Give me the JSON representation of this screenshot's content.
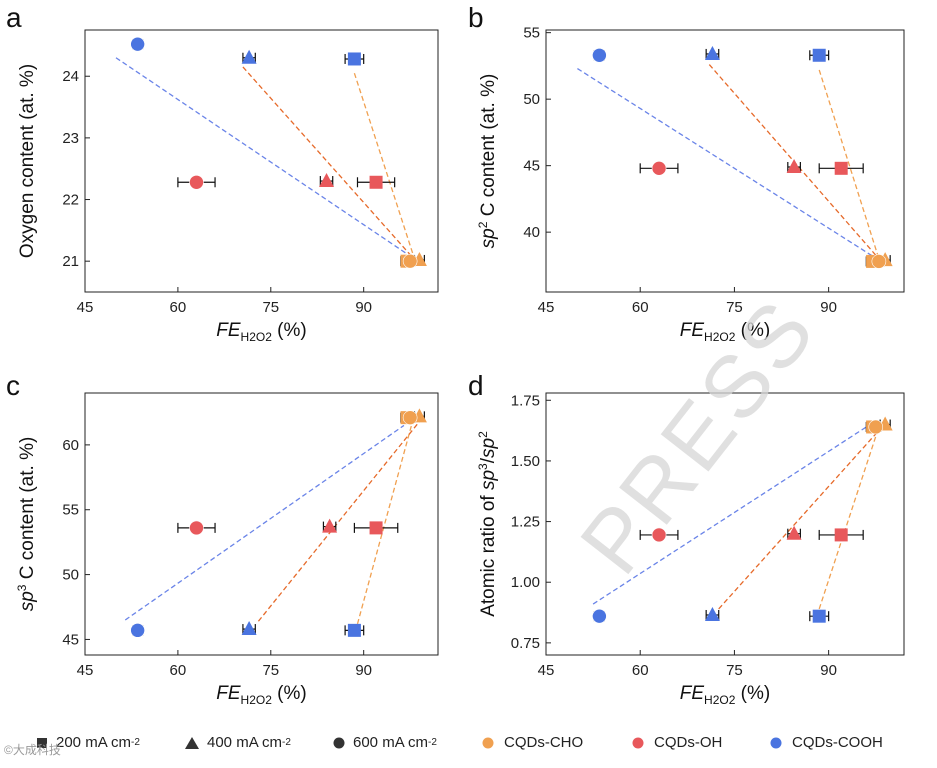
{
  "chart_data": [
    {
      "type": "scatter",
      "panel_label": "a",
      "title": "",
      "ylabel": "Oxygen content (at. %)",
      "xlabel_main": "FE",
      "xlabel_sub": "H2O2",
      "xlabel_unit": " (%)",
      "xlim": [
        45,
        102
      ],
      "ylim": [
        20.5,
        24.75
      ],
      "xticks": [
        45,
        60,
        75,
        90
      ],
      "yticks": [
        21,
        22,
        23,
        24
      ],
      "tick_decimals": 0,
      "series": [
        {
          "name": "CQDs-CHO",
          "color": "#f0a050",
          "points": [
            {
              "shape": "square",
              "x": 97,
              "y": 21.0,
              "xerr": 1.0
            },
            {
              "shape": "triangle",
              "x": 99,
              "y": 21.02,
              "xerr": 0.8
            },
            {
              "shape": "circle",
              "x": 97.5,
              "y": 21.0,
              "xerr": 0.8
            }
          ]
        },
        {
          "name": "CQDs-OH",
          "color": "#e8585b",
          "points": [
            {
              "shape": "square",
              "x": 92,
              "y": 22.28,
              "xerr": 3.0
            },
            {
              "shape": "triangle",
              "x": 84,
              "y": 22.3,
              "xerr": 1.0
            },
            {
              "shape": "circle",
              "x": 63,
              "y": 22.28,
              "xerr": 3.0
            }
          ]
        },
        {
          "name": "CQDs-COOH",
          "color": "#4a74e0",
          "points": [
            {
              "shape": "square",
              "x": 88.5,
              "y": 24.28,
              "xerr": 1.5
            },
            {
              "shape": "triangle",
              "x": 71.5,
              "y": 24.3,
              "xerr": 1.0
            },
            {
              "shape": "circle",
              "x": 53.5,
              "y": 24.52,
              "xerr": 0.8
            }
          ]
        }
      ],
      "fit_lines": [
        {
          "color": "#f0a050",
          "x": [
            88.5,
            98
          ],
          "y": [
            24.05,
            21.1
          ]
        },
        {
          "color": "#e66a2a",
          "x": [
            70.5,
            98
          ],
          "y": [
            24.15,
            21.05
          ]
        },
        {
          "color": "#6a84e8",
          "x": [
            50,
            98
          ],
          "y": [
            24.3,
            21.05
          ]
        }
      ]
    },
    {
      "type": "scatter",
      "panel_label": "b",
      "title": "",
      "ylabel_pre": "sp",
      "ylabel_sup": "2",
      "ylabel_post": " C content (at. %)",
      "xlabel_main": "FE",
      "xlabel_sub": "H2O2",
      "xlabel_unit": " (%)",
      "xlim": [
        45,
        102
      ],
      "ylim": [
        35.5,
        55.2
      ],
      "xticks": [
        45,
        60,
        75,
        90
      ],
      "yticks": [
        40,
        45,
        50,
        55
      ],
      "tick_decimals": 0,
      "series": [
        {
          "name": "CQDs-CHO",
          "color": "#f0a050",
          "points": [
            {
              "shape": "square",
              "x": 97,
              "y": 37.8,
              "xerr": 1.0
            },
            {
              "shape": "triangle",
              "x": 99,
              "y": 37.9,
              "xerr": 0.8
            },
            {
              "shape": "circle",
              "x": 98,
              "y": 37.8,
              "xerr": 0.8
            }
          ]
        },
        {
          "name": "CQDs-OH",
          "color": "#e8585b",
          "points": [
            {
              "shape": "square",
              "x": 92,
              "y": 44.8,
              "xerr": 3.5
            },
            {
              "shape": "triangle",
              "x": 84.5,
              "y": 44.9,
              "xerr": 1.0
            },
            {
              "shape": "circle",
              "x": 63,
              "y": 44.8,
              "xerr": 3.0
            }
          ]
        },
        {
          "name": "CQDs-COOH",
          "color": "#4a74e0",
          "points": [
            {
              "shape": "square",
              "x": 88.5,
              "y": 53.3,
              "xerr": 1.5
            },
            {
              "shape": "triangle",
              "x": 71.5,
              "y": 53.4,
              "xerr": 1.0
            },
            {
              "shape": "circle",
              "x": 53.5,
              "y": 53.3,
              "xerr": 0.8
            }
          ]
        }
      ],
      "fit_lines": [
        {
          "color": "#f0a050",
          "x": [
            88.5,
            98
          ],
          "y": [
            52.2,
            38.0
          ]
        },
        {
          "color": "#e66a2a",
          "x": [
            71,
            98
          ],
          "y": [
            52.6,
            38.0
          ]
        },
        {
          "color": "#6a84e8",
          "x": [
            50,
            97
          ],
          "y": [
            52.3,
            38.2
          ]
        }
      ]
    },
    {
      "type": "scatter",
      "panel_label": "c",
      "title": "",
      "ylabel_pre": "sp",
      "ylabel_sup": "3",
      "ylabel_post": " C content (at. %)",
      "xlabel_main": "FE",
      "xlabel_sub": "H2O2",
      "xlabel_unit": " (%)",
      "xlim": [
        45,
        102
      ],
      "ylim": [
        43.8,
        64.0
      ],
      "xticks": [
        45,
        60,
        75,
        90
      ],
      "yticks": [
        45,
        50,
        55,
        60
      ],
      "tick_decimals": 0,
      "series": [
        {
          "name": "CQDs-CHO",
          "color": "#f0a050",
          "points": [
            {
              "shape": "square",
              "x": 97,
              "y": 62.1,
              "xerr": 1.0
            },
            {
              "shape": "triangle",
              "x": 99,
              "y": 62.2,
              "xerr": 0.8
            },
            {
              "shape": "circle",
              "x": 97.5,
              "y": 62.1,
              "xerr": 0.8
            }
          ]
        },
        {
          "name": "CQDs-OH",
          "color": "#e8585b",
          "points": [
            {
              "shape": "square",
              "x": 92,
              "y": 53.6,
              "xerr": 3.5
            },
            {
              "shape": "triangle",
              "x": 84.5,
              "y": 53.7,
              "xerr": 1.0
            },
            {
              "shape": "circle",
              "x": 63,
              "y": 53.6,
              "xerr": 3.0
            }
          ]
        },
        {
          "name": "CQDs-COOH",
          "color": "#4a74e0",
          "points": [
            {
              "shape": "square",
              "x": 88.5,
              "y": 45.7,
              "xerr": 1.5
            },
            {
              "shape": "triangle",
              "x": 71.5,
              "y": 45.8,
              "xerr": 1.0
            },
            {
              "shape": "circle",
              "x": 53.5,
              "y": 45.7,
              "xerr": 0.8
            }
          ]
        }
      ],
      "fit_lines": [
        {
          "color": "#f0a050",
          "x": [
            89,
            98
          ],
          "y": [
            46.2,
            62.0
          ]
        },
        {
          "color": "#e66a2a",
          "x": [
            73,
            99
          ],
          "y": [
            46.4,
            61.8
          ]
        },
        {
          "color": "#6a84e8",
          "x": [
            51.5,
            96.5
          ],
          "y": [
            46.5,
            61.5
          ]
        }
      ]
    },
    {
      "type": "scatter",
      "panel_label": "d",
      "title": "",
      "ylabel_pre": "Atomic ratio of ",
      "ylabel_a": "sp",
      "ylabel_asup": "3",
      "ylabel_mid": "/",
      "ylabel_b": "sp",
      "ylabel_bsup": "2",
      "xlabel_main": "FE",
      "xlabel_sub": "H2O2",
      "xlabel_unit": " (%)",
      "xlim": [
        45,
        102
      ],
      "ylim": [
        0.7,
        1.78
      ],
      "xticks": [
        45,
        60,
        75,
        90
      ],
      "yticks": [
        0.75,
        1.0,
        1.25,
        1.5,
        1.75
      ],
      "tick_decimals": 2,
      "series": [
        {
          "name": "CQDs-CHO",
          "color": "#f0a050",
          "points": [
            {
              "shape": "square",
              "x": 97,
              "y": 1.64,
              "xerr": 1.0
            },
            {
              "shape": "triangle",
              "x": 99,
              "y": 1.65,
              "xerr": 0.8
            },
            {
              "shape": "circle",
              "x": 97.5,
              "y": 1.64,
              "xerr": 0.8
            }
          ]
        },
        {
          "name": "CQDs-OH",
          "color": "#e8585b",
          "points": [
            {
              "shape": "square",
              "x": 92,
              "y": 1.195,
              "xerr": 3.5
            },
            {
              "shape": "triangle",
              "x": 84.5,
              "y": 1.2,
              "xerr": 1.0
            },
            {
              "shape": "circle",
              "x": 63,
              "y": 1.195,
              "xerr": 3.0
            }
          ]
        },
        {
          "name": "CQDs-COOH",
          "color": "#4a74e0",
          "points": [
            {
              "shape": "square",
              "x": 88.5,
              "y": 0.86,
              "xerr": 1.5
            },
            {
              "shape": "triangle",
              "x": 71.5,
              "y": 0.865,
              "xerr": 1.0
            },
            {
              "shape": "circle",
              "x": 53.5,
              "y": 0.86,
              "xerr": 0.8
            }
          ]
        }
      ],
      "fit_lines": [
        {
          "color": "#f0a050",
          "x": [
            88.5,
            98
          ],
          "y": [
            0.89,
            1.64
          ]
        },
        {
          "color": "#e66a2a",
          "x": [
            72.5,
            98.5
          ],
          "y": [
            0.89,
            1.64
          ]
        },
        {
          "color": "#6a84e8",
          "x": [
            52.5,
            96
          ],
          "y": [
            0.91,
            1.64
          ]
        }
      ]
    }
  ],
  "legend": {
    "shapes": [
      {
        "shape": "square",
        "text": "200 mA cm",
        "sup": "-2"
      },
      {
        "shape": "triangle",
        "text": "400 mA cm",
        "sup": "-2"
      },
      {
        "shape": "circle",
        "text": "600 mA cm",
        "sup": "-2"
      }
    ],
    "samples": [
      {
        "text": "CQDs-CHO",
        "color": "#f0a050"
      },
      {
        "text": "CQDs-OH",
        "color": "#e8585b"
      },
      {
        "text": "CQDs-COOH",
        "color": "#4a74e0"
      }
    ]
  },
  "watermark": "PRESS",
  "brand_text": "©大成科技"
}
